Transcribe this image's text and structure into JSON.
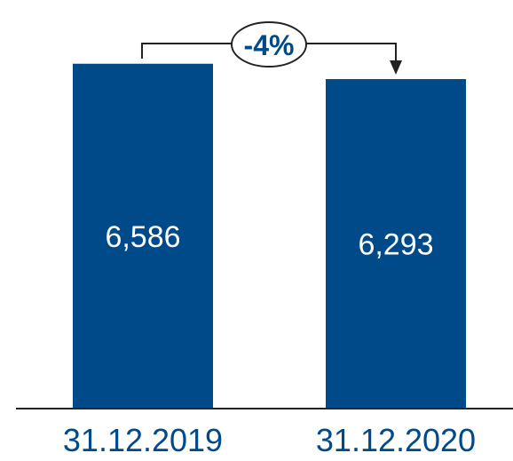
{
  "chart_data": {
    "type": "bar",
    "categories": [
      "31.12.2019",
      "31.12.2020"
    ],
    "values": [
      6586,
      6293
    ],
    "value_labels": [
      "6,586",
      "6,293"
    ],
    "bar_color": "#004a8a",
    "category_label_color": "#004a8a",
    "value_label_color": "#ffffff",
    "change_annotation": {
      "text": "-4%",
      "from": "31.12.2019",
      "to": "31.12.2020",
      "text_color": "#004a8a",
      "line_color": "#222222"
    }
  }
}
